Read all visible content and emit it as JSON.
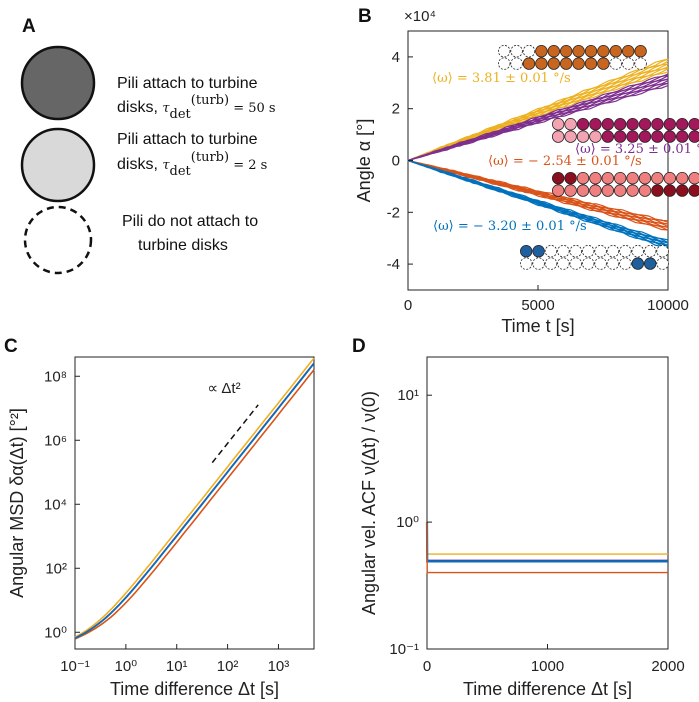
{
  "panel_labels": [
    "A",
    "B",
    "C",
    "D"
  ],
  "legend": {
    "items": [
      {
        "line1": "Pili attach to turbine",
        "line2": "disks, τ(turb)det = 50 s",
        "fill": "#666666",
        "style": "solid"
      },
      {
        "line1": "Pili attach to turbine",
        "line2": "disks, τ(turb)det = 2 s",
        "fill": "#d9d9d9",
        "style": "solid"
      },
      {
        "line1": "Pili do not attach to",
        "line2": "turbine disks",
        "fill": "#ffffff",
        "style": "dashed"
      }
    ]
  },
  "colors": {
    "yellow": "#EDB120",
    "purple": "#7E2F8E",
    "orange": "#D95319",
    "blue": "#0072BD",
    "brown": "#C8651E",
    "magenta": "#A2185B",
    "pink": "#F4A3B3",
    "darkred": "#8B0F1E",
    "redpink": "#F08080",
    "navy": "#1F5F9E"
  },
  "chart_data": [
    {
      "id": "B",
      "type": "line",
      "xlabel": "Time t [s]",
      "ylabel": "Angle α [°]",
      "xlim": [
        0,
        10000
      ],
      "ylim": [
        -50000,
        50000
      ],
      "xticks": [
        "0",
        "5000",
        "10000"
      ],
      "yticks": [
        "-4",
        "-2",
        "0",
        "2",
        "4"
      ],
      "y_exponent": "×10⁴",
      "series": [
        {
          "name": "yellow",
          "omega": 3.81,
          "annotation": "⟨ω⟩ = 3.81 ± 0.01 °/s",
          "color": "#EDB120",
          "spread": [
            3.45,
            3.95
          ]
        },
        {
          "name": "purple",
          "omega": 3.25,
          "annotation": "⟨ω⟩ = 3.25 ± 0.01 °/s",
          "color": "#7E2F8E",
          "spread": [
            2.9,
            3.35
          ]
        },
        {
          "name": "orange",
          "omega": -2.54,
          "annotation": "⟨ω⟩ = − 2.54 ± 0.01 °/s",
          "color": "#D95319",
          "spread": [
            -2.35,
            -2.7
          ]
        },
        {
          "name": "blue",
          "omega": -3.2,
          "annotation": "⟨ω⟩ = − 3.20 ± 0.01 °/s",
          "color": "#0072BD",
          "spread": [
            -3.1,
            -3.4
          ]
        }
      ]
    },
    {
      "id": "C",
      "type": "line",
      "scale": "log-log",
      "xlabel": "Time difference Δt [s]",
      "ylabel": "Angular MSD δα(Δt) [°²]",
      "xlim": [
        0.1,
        5000
      ],
      "ylim": [
        0.3,
        400000000
      ],
      "xticks": [
        "10⁻¹",
        "10⁰",
        "10¹",
        "10²",
        "10³"
      ],
      "yticks": [
        "10⁰",
        "10²",
        "10⁴",
        "10⁶",
        "10⁸"
      ],
      "annotation": "∝ Δt²",
      "series": [
        {
          "name": "yellow",
          "color": "#EDB120",
          "value_at_0_1": 0.55,
          "value_at_5000": 370000000
        },
        {
          "name": "purple",
          "color": "#7E2F8E",
          "value_at_0_1": 0.55,
          "value_at_5000": 260000000
        },
        {
          "name": "orange",
          "color": "#D95319",
          "value_at_0_1": 0.55,
          "value_at_5000": 160000000
        },
        {
          "name": "blue",
          "color": "#0072BD",
          "value_at_0_1": 0.55,
          "value_at_5000": 250000000
        }
      ]
    },
    {
      "id": "D",
      "type": "line",
      "scale": "semilog-y",
      "xlabel": "Time difference Δt [s]",
      "ylabel": "Angular vel. ACF ν(Δt) / ν(0)",
      "xlim": [
        0,
        2000
      ],
      "ylim": [
        0.1,
        20
      ],
      "xticks": [
        "0",
        "1000",
        "2000"
      ],
      "yticks": [
        "10⁻¹",
        "10⁰",
        "10¹"
      ],
      "series": [
        {
          "name": "yellow",
          "color": "#EDB120",
          "plateau": 0.56
        },
        {
          "name": "purple",
          "color": "#7E2F8E",
          "plateau": 0.5
        },
        {
          "name": "blue",
          "color": "#0072BD",
          "plateau": 0.49
        },
        {
          "name": "orange",
          "color": "#D95319",
          "plateau": 0.4
        }
      ]
    }
  ]
}
